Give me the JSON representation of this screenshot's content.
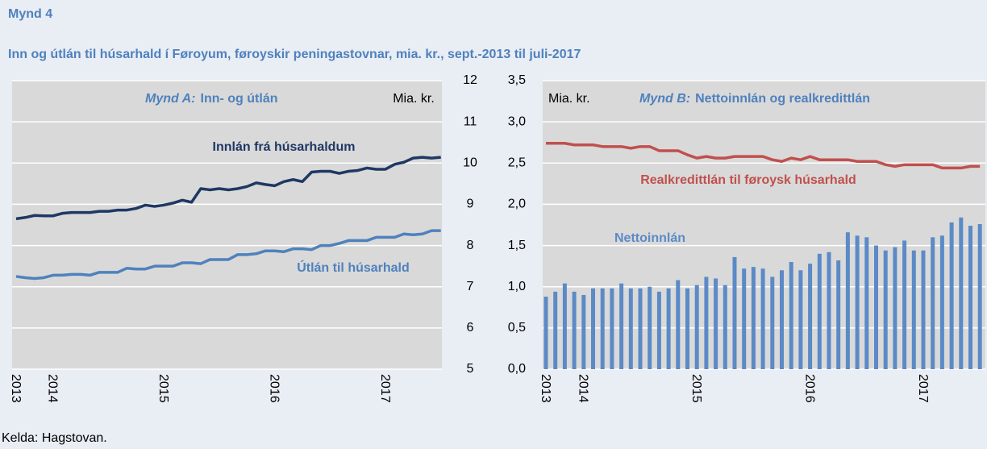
{
  "header": {
    "title": "Mynd 4",
    "subtitle": "Inn og útlán til húsarhald í Føroyum, føroyskir peningastovnar, mia. kr., sept.-2013 til juli-2017"
  },
  "source": "Kelda: Hagstovan.",
  "chart_data": [
    {
      "type": "line",
      "panel_label": "Mynd A:",
      "title": "Inn- og útlán",
      "y_label": "Mia. kr.",
      "categories": [
        "2013",
        null,
        null,
        null,
        "2014",
        null,
        null,
        null,
        null,
        null,
        null,
        null,
        null,
        null,
        null,
        null,
        "2015",
        null,
        null,
        null,
        null,
        null,
        null,
        null,
        null,
        null,
        null,
        null,
        "2016",
        null,
        null,
        null,
        null,
        null,
        null,
        null,
        null,
        null,
        null,
        null,
        "2017",
        null,
        null,
        null,
        null,
        null,
        null
      ],
      "ylim": [
        5,
        12
      ],
      "yticks": [
        5,
        6,
        7,
        8,
        9,
        10,
        11,
        12
      ],
      "grid": true,
      "series": [
        {
          "name": "Innlán frá húsarhaldum",
          "color": "#1f3864",
          "values": [
            8.65,
            8.68,
            8.73,
            8.72,
            8.72,
            8.78,
            8.8,
            8.8,
            8.8,
            8.83,
            8.83,
            8.86,
            8.86,
            8.9,
            8.98,
            8.95,
            8.98,
            9.03,
            9.1,
            9.05,
            9.38,
            9.35,
            9.38,
            9.35,
            9.38,
            9.43,
            9.52,
            9.48,
            9.45,
            9.55,
            9.6,
            9.55,
            9.78,
            9.8,
            9.8,
            9.75,
            9.8,
            9.82,
            9.88,
            9.85,
            9.85,
            9.97,
            10.02,
            10.12,
            10.14,
            10.12,
            10.14
          ]
        },
        {
          "name": "Útlán til húsarhald",
          "color": "#4f81bd",
          "values": [
            7.25,
            7.22,
            7.2,
            7.22,
            7.28,
            7.28,
            7.3,
            7.3,
            7.28,
            7.35,
            7.35,
            7.35,
            7.45,
            7.43,
            7.43,
            7.5,
            7.5,
            7.5,
            7.58,
            7.58,
            7.56,
            7.66,
            7.66,
            7.66,
            7.78,
            7.78,
            7.8,
            7.87,
            7.87,
            7.85,
            7.92,
            7.92,
            7.9,
            8.0,
            8.0,
            8.05,
            8.12,
            8.12,
            8.12,
            8.2,
            8.2,
            8.2,
            8.28,
            8.26,
            8.28,
            8.36,
            8.36
          ]
        }
      ]
    },
    {
      "type": "combo",
      "panel_label": "Mynd B:",
      "title": "Nettoinnlán og realkredittlán",
      "y_label": "Mia. kr.",
      "categories": [
        "2013",
        null,
        null,
        null,
        "2014",
        null,
        null,
        null,
        null,
        null,
        null,
        null,
        null,
        null,
        null,
        null,
        "2015",
        null,
        null,
        null,
        null,
        null,
        null,
        null,
        null,
        null,
        null,
        null,
        "2016",
        null,
        null,
        null,
        null,
        null,
        null,
        null,
        null,
        null,
        null,
        null,
        "2017",
        null,
        null,
        null,
        null,
        null,
        null
      ],
      "ylim": [
        0,
        3.5
      ],
      "yticks": [
        {
          "value": 0,
          "label": "0,0"
        },
        {
          "value": 0.5,
          "label": "0,5"
        },
        {
          "value": 1,
          "label": "1,0"
        },
        {
          "value": 1.5,
          "label": "1,5"
        },
        {
          "value": 2,
          "label": "2,0"
        },
        {
          "value": 2.5,
          "label": "2,5"
        },
        {
          "value": 3,
          "label": "3,0"
        },
        {
          "value": 3.5,
          "label": "3,5"
        }
      ],
      "grid": true,
      "series": [
        {
          "name": "Nettoinnlán",
          "type": "bar",
          "color": "#5b8ac6",
          "values": [
            0.88,
            0.94,
            1.04,
            0.94,
            0.9,
            0.98,
            0.98,
            0.98,
            1.04,
            0.98,
            0.98,
            1.0,
            0.94,
            0.98,
            1.08,
            0.98,
            1.02,
            1.12,
            1.1,
            1.02,
            1.36,
            1.22,
            1.24,
            1.22,
            1.12,
            1.2,
            1.3,
            1.2,
            1.28,
            1.4,
            1.42,
            1.32,
            1.66,
            1.62,
            1.6,
            1.5,
            1.44,
            1.48,
            1.56,
            1.44,
            1.44,
            1.6,
            1.62,
            1.78,
            1.84,
            1.74,
            1.76
          ]
        },
        {
          "name": "Realkredittlán til føroysk húsarhald",
          "type": "line",
          "color": "#c0504d",
          "values": [
            2.74,
            2.74,
            2.74,
            2.72,
            2.72,
            2.72,
            2.7,
            2.7,
            2.7,
            2.68,
            2.7,
            2.7,
            2.65,
            2.65,
            2.65,
            2.6,
            2.56,
            2.58,
            2.56,
            2.56,
            2.58,
            2.58,
            2.58,
            2.58,
            2.54,
            2.52,
            2.56,
            2.54,
            2.58,
            2.54,
            2.54,
            2.54,
            2.54,
            2.52,
            2.52,
            2.52,
            2.48,
            2.46,
            2.48,
            2.48,
            2.48,
            2.48,
            2.44,
            2.44,
            2.44,
            2.46,
            2.46
          ]
        }
      ]
    }
  ]
}
